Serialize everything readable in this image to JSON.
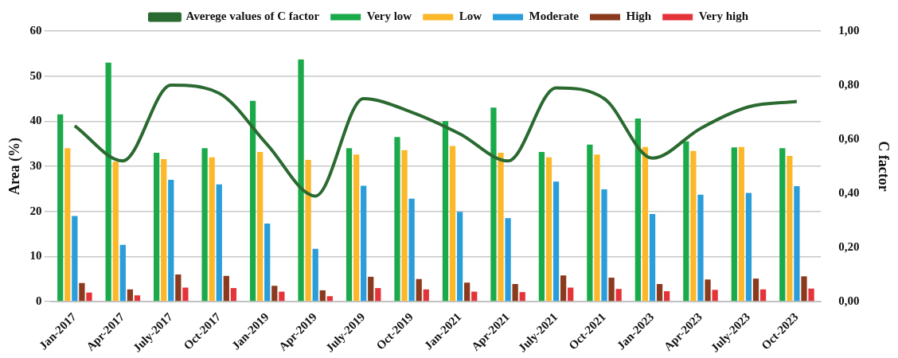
{
  "chart_data": {
    "type": "bar",
    "ylabel": "Area (%)",
    "y2label": "C factor",
    "categories": [
      "Jan-2017",
      "Apr-2017",
      "July-2017",
      "Oct-2017",
      "Jan-2019",
      "Apr-2019",
      "July-2019",
      "Oct-2019",
      "Jan-2021",
      "Apr-2021",
      "July-2021",
      "Oct-2021",
      "Jan-2023",
      "Apr-2023",
      "July-2023",
      "Oct-2023"
    ],
    "series": [
      {
        "name": "Very low",
        "color": "#1aaa4a",
        "values": [
          41.5,
          53,
          33,
          34,
          44.5,
          53.7,
          34,
          36.5,
          40,
          43,
          33.2,
          34.8,
          40.6,
          35.5,
          34.2,
          34
        ]
      },
      {
        "name": "Low",
        "color": "#fbb829",
        "values": [
          34,
          31,
          31.6,
          32,
          33.2,
          31.4,
          32.6,
          33.6,
          34.5,
          33,
          32,
          32.6,
          34.3,
          33.4,
          34.3,
          32.3
        ]
      },
      {
        "name": "Moderate",
        "color": "#2a9ddb",
        "values": [
          19,
          12.6,
          27,
          26,
          17.3,
          11.7,
          25.7,
          22.8,
          19.9,
          18.5,
          26.6,
          24.9,
          19.4,
          23.7,
          24.1,
          25.6
        ]
      },
      {
        "name": "High",
        "color": "#8b3a1e",
        "values": [
          4.1,
          2.7,
          6,
          5.7,
          3.5,
          2.5,
          5.5,
          5,
          4.2,
          3.9,
          5.8,
          5.3,
          3.9,
          4.9,
          5.1,
          5.6
        ]
      },
      {
        "name": "Very high",
        "color": "#e5333a",
        "values": [
          2,
          1.4,
          3.1,
          3,
          2.2,
          1.2,
          3,
          2.7,
          2.2,
          2.1,
          3.1,
          2.8,
          2.3,
          2.6,
          2.7,
          2.9
        ]
      },
      {
        "name": "Averege values of C factor",
        "type": "line",
        "axis": "y2",
        "color": "#2a6a30",
        "values": [
          0.65,
          0.52,
          0.8,
          0.77,
          0.58,
          0.39,
          0.75,
          0.7,
          0.62,
          0.52,
          0.79,
          0.75,
          0.53,
          0.64,
          0.72,
          0.74
        ]
      }
    ],
    "ylim": [
      0,
      60
    ],
    "yticks": [
      0,
      10,
      20,
      30,
      40,
      50,
      60
    ],
    "y2lim": [
      0,
      1
    ],
    "y2ticks": [
      {
        "value": 0,
        "label": "0,00"
      },
      {
        "value": 0.2,
        "label": "0,20"
      },
      {
        "value": 0.4,
        "label": "0,40"
      },
      {
        "value": 0.6,
        "label": "0,60"
      },
      {
        "value": 0.8,
        "label": "0,80"
      },
      {
        "value": 1,
        "label": "1,00"
      }
    ],
    "grid": "y",
    "legend": "top",
    "marker": "none"
  }
}
